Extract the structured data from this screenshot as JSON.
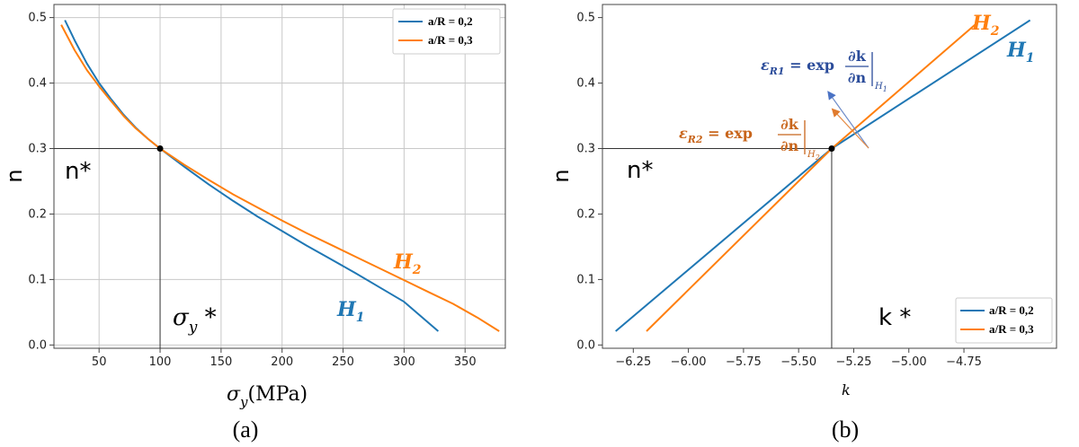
{
  "colors": {
    "h1": "#1f77b4",
    "h2": "#ff7f0e",
    "eps1": "#2b4c9a",
    "eps2": "#c8651b",
    "grid": "#c8c8c8",
    "ref": "#333333"
  },
  "chart_data": [
    {
      "type": "line",
      "panel_label": "(a)",
      "title": "",
      "xlabel_symbol": "σ",
      "xlabel_sub": "y",
      "xlabel_unit": "(MPa)",
      "ylabel": "n",
      "xlim": [
        13,
        383
      ],
      "ylim": [
        -0.005,
        0.52
      ],
      "grid": true,
      "legend_position": "top-right",
      "x_ticks": [
        {
          "value": 50,
          "label": "50"
        },
        {
          "value": 100,
          "label": "100"
        },
        {
          "value": 150,
          "label": "150"
        },
        {
          "value": 200,
          "label": "200"
        },
        {
          "value": 250,
          "label": "250"
        },
        {
          "value": 300,
          "label": "300"
        },
        {
          "value": 350,
          "label": "350"
        }
      ],
      "y_ticks": [
        {
          "value": 0.0,
          "label": "0.0"
        },
        {
          "value": 0.1,
          "label": "0.1"
        },
        {
          "value": 0.2,
          "label": "0.2"
        },
        {
          "value": 0.3,
          "label": "0.3"
        },
        {
          "value": 0.4,
          "label": "0.4"
        },
        {
          "value": 0.5,
          "label": "0.5"
        }
      ],
      "series": [
        {
          "name": "a/R = 0,2",
          "curve_label": "H",
          "curve_label_sub": "1",
          "color_key": "h1",
          "x": [
            22,
            30,
            40,
            50,
            60,
            70,
            80,
            90,
            100,
            120,
            140,
            160,
            180,
            200,
            220,
            240,
            260,
            280,
            300,
            328
          ],
          "y": [
            0.496,
            0.465,
            0.43,
            0.4,
            0.375,
            0.352,
            0.332,
            0.315,
            0.3,
            0.272,
            0.245,
            0.22,
            0.196,
            0.174,
            0.152,
            0.131,
            0.11,
            0.088,
            0.066,
            0.021
          ]
        },
        {
          "name": "a/R = 0,3",
          "curve_label": "H",
          "curve_label_sub": "2",
          "color_key": "h2",
          "x": [
            19,
            30,
            40,
            50,
            60,
            70,
            80,
            90,
            100,
            120,
            140,
            160,
            180,
            200,
            220,
            240,
            260,
            280,
            300,
            320,
            340,
            360,
            378
          ],
          "y": [
            0.489,
            0.45,
            0.42,
            0.395,
            0.372,
            0.35,
            0.331,
            0.315,
            0.3,
            0.275,
            0.252,
            0.23,
            0.21,
            0.19,
            0.171,
            0.153,
            0.135,
            0.117,
            0.099,
            0.081,
            0.063,
            0.042,
            0.021
          ]
        }
      ],
      "reference_point": {
        "x": 100,
        "y": 0.3
      },
      "annotations": {
        "n_star": "n*",
        "sigma_star": "σ",
        "sigma_star_sub": "y",
        "sigma_star_suffix": " *"
      }
    },
    {
      "type": "line",
      "panel_label": "(b)",
      "title": "",
      "xlabel": "k",
      "ylabel": "n",
      "xlim": [
        -6.39,
        -4.33
      ],
      "ylim": [
        -0.005,
        0.52
      ],
      "grid": false,
      "legend_position": "bottom-right",
      "x_ticks": [
        {
          "value": -6.25,
          "label": "−6.25"
        },
        {
          "value": -6.0,
          "label": "−6.00"
        },
        {
          "value": -5.75,
          "label": "−5.75"
        },
        {
          "value": -5.5,
          "label": "−5.50"
        },
        {
          "value": -5.25,
          "label": "−5.25"
        },
        {
          "value": -5.0,
          "label": "−5.00"
        },
        {
          "value": -4.75,
          "label": "−4.75"
        }
      ],
      "y_ticks": [
        {
          "value": 0.0,
          "label": "0.0"
        },
        {
          "value": 0.1,
          "label": "0.1"
        },
        {
          "value": 0.2,
          "label": "0.2"
        },
        {
          "value": 0.3,
          "label": "0.3"
        },
        {
          "value": 0.4,
          "label": "0.4"
        },
        {
          "value": 0.5,
          "label": "0.5"
        }
      ],
      "series": [
        {
          "name": "a/R = 0,2",
          "curve_label": "H",
          "curve_label_sub": "1",
          "color_key": "h1",
          "x": [
            -6.33,
            -5.35,
            -4.45
          ],
          "y": [
            0.021,
            0.3,
            0.496
          ]
        },
        {
          "name": "a/R = 0,3",
          "curve_label": "H",
          "curve_label_sub": "2",
          "color_key": "h2",
          "x": [
            -6.19,
            -5.35,
            -4.7
          ],
          "y": [
            0.021,
            0.3,
            0.489
          ]
        }
      ],
      "reference_point": {
        "x": -5.35,
        "y": 0.3
      },
      "annotations": {
        "n_star": "n*",
        "k_star": "k *",
        "eps1": {
          "lhs": "ε",
          "lhs_sub": "R1",
          "mid": " = exp ",
          "num": "∂k",
          "den": "∂n",
          "bar_sub": "H",
          "bar_sub2": "1"
        },
        "eps2": {
          "lhs": "ε",
          "lhs_sub": "R2",
          "mid": " = exp ",
          "num": "∂k",
          "den": "∂n",
          "bar_sub": "H",
          "bar_sub2": "2"
        }
      }
    }
  ]
}
